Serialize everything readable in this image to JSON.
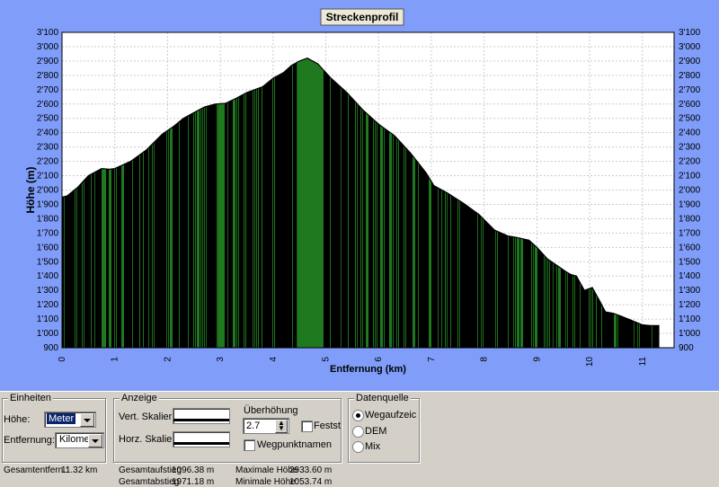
{
  "window": {
    "title": "Streckenprofil"
  },
  "colors": {
    "background": "#7f9df9",
    "fill_dark": "#000000",
    "fill_green": "#1f7a1f",
    "grid": "#cccccc"
  },
  "chart_data": {
    "type": "area",
    "title": "Streckenprofil",
    "xlabel": "Entfernung (km)",
    "ylabel": "Höhe (m)",
    "xlim": [
      0,
      11.6
    ],
    "ylim": [
      900,
      3100
    ],
    "x_ticks": [
      "0",
      "1",
      "2",
      "3",
      "4",
      "5",
      "6",
      "7",
      "8",
      "9",
      "10",
      "11"
    ],
    "y_ticks": [
      "3'100",
      "3'000",
      "2'900",
      "2'800",
      "2'700",
      "2'600",
      "2'500",
      "2'400",
      "2'300",
      "2'200",
      "2'100",
      "2'000",
      "1'900",
      "1'800",
      "1'700",
      "1'600",
      "1'500",
      "1'400",
      "1'300",
      "1'200",
      "1'100",
      "1'000",
      "900"
    ],
    "grid": true,
    "series": [
      {
        "x": [
          0,
          0.1,
          0.3,
          0.5,
          0.75,
          0.9,
          1.0,
          1.3,
          1.6,
          1.9,
          2.1,
          2.3,
          2.5,
          2.7,
          2.9,
          3.1,
          3.3,
          3.5,
          3.8,
          4.0,
          4.2,
          4.35,
          4.5,
          4.65,
          4.85,
          5.1,
          5.4,
          5.7,
          6.0,
          6.3,
          6.6,
          6.9,
          7.05,
          7.3,
          7.6,
          7.9,
          8.2,
          8.45,
          8.6,
          8.85,
          9.0,
          9.2,
          9.4,
          9.55,
          9.65,
          9.75,
          9.9,
          10.05,
          10.2,
          10.3,
          10.45,
          10.6,
          10.8,
          11.0,
          11.15,
          11.32
        ],
        "y": [
          1950,
          1960,
          2020,
          2100,
          2150,
          2145,
          2150,
          2200,
          2280,
          2390,
          2440,
          2500,
          2540,
          2580,
          2600,
          2605,
          2640,
          2680,
          2720,
          2780,
          2820,
          2870,
          2900,
          2920,
          2880,
          2780,
          2680,
          2560,
          2460,
          2380,
          2260,
          2120,
          2030,
          1980,
          1910,
          1830,
          1720,
          1680,
          1670,
          1650,
          1600,
          1520,
          1470,
          1430,
          1410,
          1400,
          1300,
          1320,
          1220,
          1150,
          1140,
          1120,
          1090,
          1060,
          1055,
          1054
        ]
      }
    ]
  },
  "settings": {
    "units": {
      "group_label": "Einheiten",
      "height_label": "Höhe:",
      "height_value": "Meter",
      "distance_label": "Entfernung:",
      "distance_value": "Kilometer"
    },
    "display": {
      "group_label": "Anzeige",
      "vert_label": "Vert. Skalier",
      "horz_label": "Horz. Skalier",
      "exaggeration_label": "Überhöhung",
      "exaggeration_value": "2.7",
      "fixed_label": "Festst",
      "waypoint_label": "Wegpunktnamen"
    },
    "source": {
      "group_label": "Datenquelle",
      "options": [
        "Wegaufzeichnu",
        "DEM",
        "Mix"
      ]
    }
  },
  "stats": {
    "total_label": "Gesamtentfern.:",
    "total_value": "11.32 km",
    "ascent_label": "Gesamtaufstieg",
    "ascent_value": "1096.38 m",
    "descent_label": "Gesamtabstieg",
    "descent_value": "1971.18 m",
    "max_label": "Maximale Höhe",
    "max_value": "2933.60 m",
    "min_label": "Minimale Höhe:",
    "min_value": "1053.74 m"
  }
}
